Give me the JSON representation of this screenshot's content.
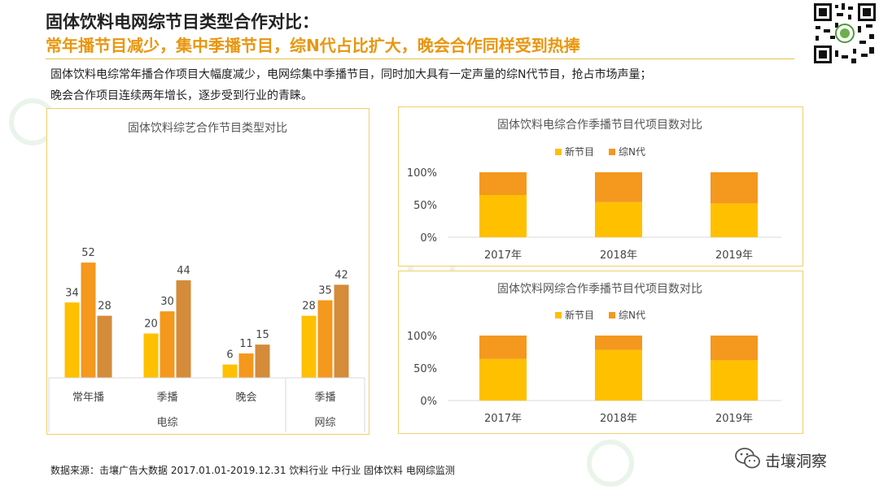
{
  "header": {
    "title": "固体饮料电网综节目类型合作对比：",
    "subtitle": "常年播节目减少，集中季播节目，综N代占比扩大，晚会合作同样受到热捧"
  },
  "description": {
    "line1": "固体饮料电综常年播合作项目大幅度减少，电网综集中季播节目，同时加大具有一定声量的综N代节目，抢占市场声量；",
    "line2": "晚会合作项目连续两年增长，逐步受到行业的青睐。"
  },
  "footer": {
    "source": "数据来源：击壤广告大数据 2017.01.01-2019.12.31  饮料行业 中行业 固体饮料  电网综监测"
  },
  "brand": {
    "name": "击壤洞察"
  },
  "colors": {
    "y2017": "#FFC000",
    "y2018": "#F4981E",
    "y2019": "#D48B3A",
    "new": "#FFC000",
    "sequel": "#F4981E",
    "accent": "#E9960F",
    "panel_border": "#F0CF6A"
  },
  "chart_data": [
    {
      "type": "bar",
      "title": "固体饮料综艺合作节目类型对比",
      "categories": [
        "常年播",
        "季播",
        "晚会",
        "季播"
      ],
      "groups": [
        {
          "label": "电综",
          "categories": [
            "常年播",
            "季播",
            "晚会"
          ]
        },
        {
          "label": "网综",
          "categories": [
            "季播"
          ]
        }
      ],
      "series": [
        {
          "values": [
            34,
            20,
            6,
            28
          ]
        },
        {
          "values": [
            52,
            30,
            11,
            35
          ]
        },
        {
          "values": [
            28,
            44,
            15,
            42
          ]
        }
      ],
      "ylim": [
        0,
        55
      ]
    },
    {
      "type": "bar",
      "stacked": true,
      "percent": true,
      "title": "固体饮料电综合作季播节目代项目数对比",
      "categories": [
        "2017年",
        "2018年",
        "2019年"
      ],
      "series": [
        {
          "name": "新节目",
          "values": [
            65,
            54,
            52
          ]
        },
        {
          "name": "综N代",
          "values": [
            35,
            46,
            48
          ]
        }
      ],
      "yticks": [
        "0%",
        "50%",
        "100%"
      ],
      "legend": "top"
    },
    {
      "type": "bar",
      "stacked": true,
      "percent": true,
      "title": "固体饮料网综合作季播节目代项目数对比",
      "categories": [
        "2017年",
        "2018年",
        "2019年"
      ],
      "series": [
        {
          "name": "新节目",
          "values": [
            64,
            78,
            62
          ]
        },
        {
          "name": "综N代",
          "values": [
            36,
            22,
            38
          ]
        }
      ],
      "yticks": [
        "0%",
        "50%",
        "100%"
      ],
      "legend": "top"
    }
  ]
}
